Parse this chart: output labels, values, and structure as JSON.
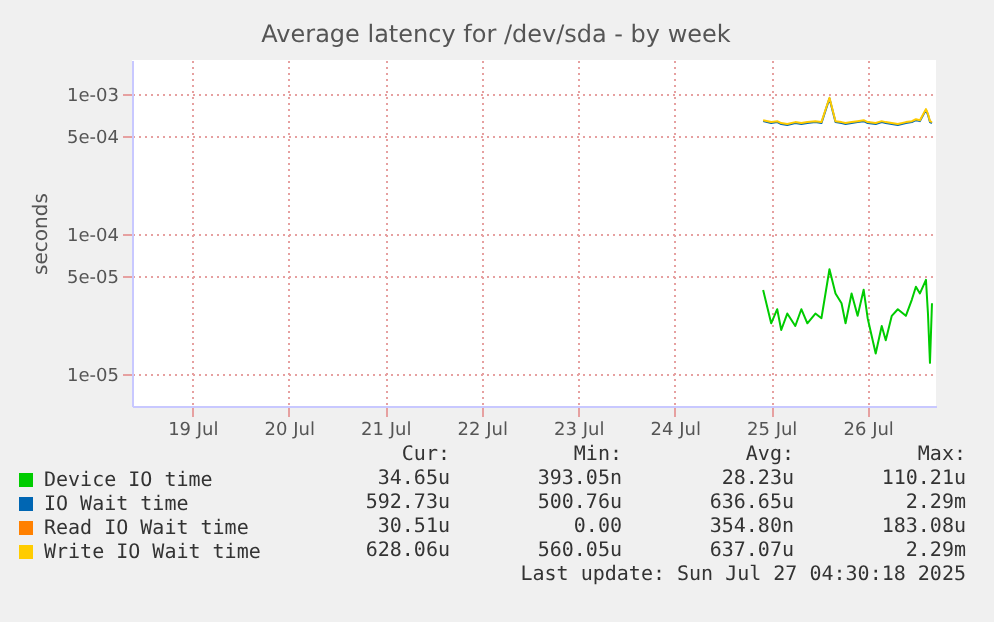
{
  "chart_data": {
    "type": "line",
    "title": "Average latency for /dev/sda - by week",
    "ylabel": "seconds",
    "log": true,
    "grid": true,
    "legend": "bottom",
    "xlim": [
      "2025-07-18T21:00",
      "2025-07-27T05:00"
    ],
    "xticks": [
      {
        "value": "2025-07-19T12:00",
        "label": "19 Jul"
      },
      {
        "value": "2025-07-20T12:00",
        "label": "20 Jul"
      },
      {
        "value": "2025-07-21T12:00",
        "label": "21 Jul"
      },
      {
        "value": "2025-07-22T12:00",
        "label": "22 Jul"
      },
      {
        "value": "2025-07-23T12:00",
        "label": "23 Jul"
      },
      {
        "value": "2025-07-24T12:00",
        "label": "24 Jul"
      },
      {
        "value": "2025-07-25T12:00",
        "label": "25 Jul"
      },
      {
        "value": "2025-07-26T12:00",
        "label": "26 Jul"
      }
    ],
    "ylim": [
      5.9e-06,
      0.00175
    ],
    "yticks": [
      {
        "value": 1e-05,
        "label": "1e-05"
      },
      {
        "value": 5e-05,
        "label": "5e-05"
      },
      {
        "value": 0.0001,
        "label": "1e-04"
      },
      {
        "value": 0.0005,
        "label": "5e-04"
      },
      {
        "value": 0.001,
        "label": "1e-03"
      }
    ],
    "x": [
      "2025-07-25T10:00",
      "2025-07-25T12:00",
      "2025-07-25T13:30",
      "2025-07-25T14:30",
      "2025-07-25T16:00",
      "2025-07-25T18:00",
      "2025-07-25T19:30",
      "2025-07-25T21:00",
      "2025-07-25T23:00",
      "2025-07-26T00:30",
      "2025-07-26T02:30",
      "2025-07-26T04:00",
      "2025-07-26T05:30",
      "2025-07-26T06:30",
      "2025-07-26T08:00",
      "2025-07-26T09:30",
      "2025-07-26T11:00",
      "2025-07-26T12:00",
      "2025-07-26T14:00",
      "2025-07-26T15:30",
      "2025-07-26T16:30",
      "2025-07-26T18:00",
      "2025-07-26T19:30",
      "2025-07-26T21:30",
      "2025-07-26T23:00",
      "2025-07-27T00:00",
      "2025-07-27T01:00",
      "2025-07-27T02:30",
      "2025-07-27T03:00",
      "2025-07-27T03:30",
      "2025-07-27T04:00"
    ],
    "series": [
      {
        "name": "Device IO time",
        "color": "#00cc00",
        "values": [
          3.98e-05,
          2.3e-05,
          2.9e-05,
          2.06e-05,
          2.7e-05,
          2.2e-05,
          2.9e-05,
          2.3e-05,
          2.7e-05,
          2.5e-05,
          5.6e-05,
          3.76e-05,
          3.2e-05,
          2.3e-05,
          3.76e-05,
          2.6e-05,
          4e-05,
          2.5e-05,
          1.4e-05,
          2.2e-05,
          1.74e-05,
          2.6e-05,
          2.9e-05,
          2.6e-05,
          3.4e-05,
          4.2e-05,
          3.76e-05,
          4.7e-05,
          2.7e-05,
          1.2e-05,
          3.2e-05
        ]
      },
      {
        "name": "IO Wait time",
        "color": "#0066b3",
        "values": [
          0.00064,
          0.00062,
          0.00063,
          0.00061,
          0.0006,
          0.00062,
          0.00061,
          0.00062,
          0.00063,
          0.00062,
          0.00093,
          0.00063,
          0.00062,
          0.00061,
          0.00062,
          0.00063,
          0.00064,
          0.00062,
          0.00061,
          0.00063,
          0.00062,
          0.00061,
          0.0006,
          0.00062,
          0.00063,
          0.00065,
          0.00064,
          0.00077,
          0.00071,
          0.00063,
          0.00062
        ]
      },
      {
        "name": "Read IO Wait time",
        "color": "#ff8000",
        "values": [
          null,
          null,
          null,
          null,
          null,
          null,
          null,
          null,
          null,
          null,
          null,
          null,
          null,
          null,
          null,
          null,
          null,
          null,
          null,
          null,
          null,
          null,
          null,
          null,
          null,
          null,
          null,
          null,
          null,
          null,
          null
        ]
      },
      {
        "name": "Write IO Wait time",
        "color": "#ffcc00",
        "values": [
          0.00065,
          0.00063,
          0.00064,
          0.00062,
          0.00061,
          0.00063,
          0.00062,
          0.00063,
          0.00064,
          0.00063,
          0.00094,
          0.00064,
          0.00063,
          0.00062,
          0.00063,
          0.00064,
          0.00065,
          0.00063,
          0.00062,
          0.00064,
          0.00063,
          0.00062,
          0.00061,
          0.00063,
          0.00064,
          0.00066,
          0.00065,
          0.00078,
          0.00072,
          0.00064,
          0.00063
        ]
      }
    ],
    "annotations": [
      "Cur:",
      "Min:",
      "Avg:",
      "Max:",
      "34.65u",
      "393.05n",
      "28.23u",
      "110.21u",
      "592.73u",
      "500.76u",
      "636.65u",
      "2.29m",
      "30.51u",
      "0.00",
      "354.80n",
      "183.08u",
      "628.06u",
      "560.05u",
      "637.07u",
      "2.29m",
      "Last update: Sun Jul 27 04:30:18 2025"
    ]
  }
}
